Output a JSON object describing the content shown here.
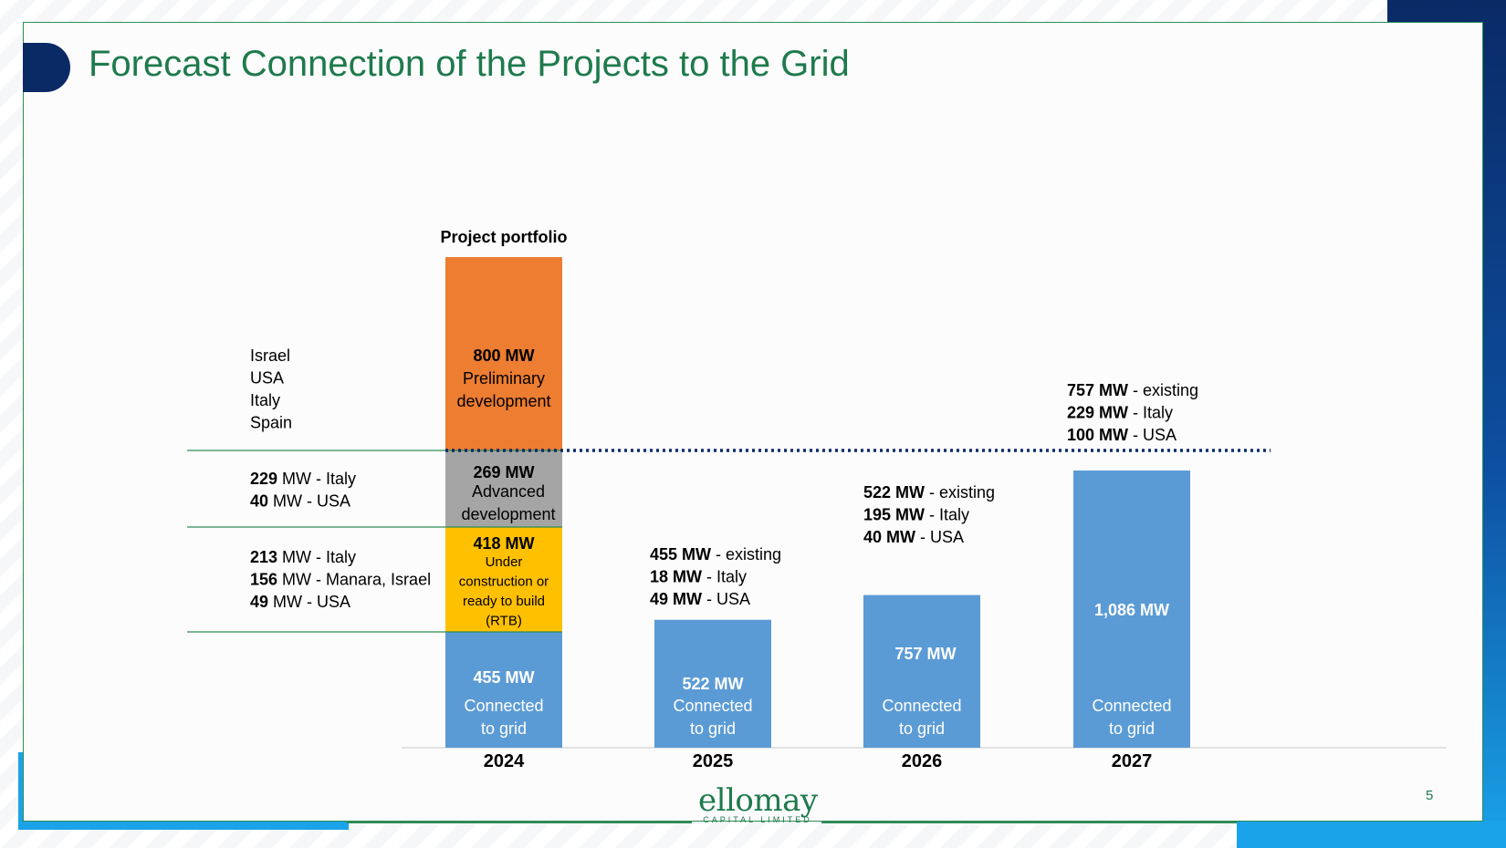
{
  "page": {
    "title": "Forecast Connection of the Projects to the Grid",
    "page_number": "5",
    "logo": {
      "name": "ellomay",
      "subtitle": "CAPITAL LIMITED"
    }
  },
  "colors": {
    "connected": "#5b9bd5",
    "rtb": "#ffc000",
    "advanced": "#a5a5a5",
    "preliminary": "#ed7d31",
    "brand_green": "#1e7a4c",
    "navy": "#0a2a66"
  },
  "chart_data": {
    "type": "bar",
    "title": "Project portfolio",
    "categories": [
      "2024",
      "2025",
      "2026",
      "2027"
    ],
    "portfolio_2024": [
      {
        "key": "connected",
        "mw": 455,
        "value_label": "455 MW",
        "lines": [
          "Connected",
          "to grid"
        ]
      },
      {
        "key": "rtb",
        "mw": 418,
        "value_label": "418 MW",
        "lines": [
          "Under",
          "construction or",
          "ready to build",
          "(RTB)"
        ]
      },
      {
        "key": "advanced",
        "mw": 269,
        "value_label": "269 MW",
        "lines": [
          "Advanced",
          "development"
        ]
      },
      {
        "key": "preliminary",
        "mw": 800,
        "value_label": "800 MW",
        "lines": [
          "Preliminary",
          "development"
        ]
      }
    ],
    "connected_bars": [
      {
        "year": "2024",
        "mw": 455,
        "value_label": "455 MW",
        "lines": [
          "Connected",
          "to grid"
        ]
      },
      {
        "year": "2025",
        "mw": 522,
        "value_label": "522 MW",
        "lines": [
          "Connected",
          "to grid"
        ]
      },
      {
        "year": "2026",
        "mw": 757,
        "value_label": "757 MW",
        "lines": [
          "Connected",
          "to grid"
        ]
      },
      {
        "year": "2027",
        "mw": 1086,
        "value_label": "1,086 MW",
        "lines": [
          "Connected",
          "to grid"
        ]
      }
    ],
    "annotations": [
      {
        "year": "2025",
        "lines": [
          {
            "bold": "455 MW",
            "rest": " - existing"
          },
          {
            "bold": "18 MW",
            "rest": " - Italy"
          },
          {
            "bold": "49 MW",
            "rest": " - USA"
          }
        ]
      },
      {
        "year": "2026",
        "lines": [
          {
            "bold": "522 MW",
            "rest": " - existing"
          },
          {
            "bold": "195 MW",
            "rest": " - Italy"
          },
          {
            "bold": "40 MW",
            "rest": " - USA"
          }
        ]
      },
      {
        "year": "2027",
        "lines": [
          {
            "bold": "757 MW",
            "rest": " - existing"
          },
          {
            "bold": "229 MW",
            "rest": " - Italy"
          },
          {
            "bold": "100 MW",
            "rest": " - USA"
          }
        ]
      }
    ],
    "left_labels": {
      "preliminary": [
        {
          "bold": "",
          "rest": "Israel"
        },
        {
          "bold": "",
          "rest": "USA"
        },
        {
          "bold": "",
          "rest": "Italy"
        },
        {
          "bold": "",
          "rest": "Spain"
        }
      ],
      "advanced": [
        {
          "bold": "229",
          "rest": " MW - Italy"
        },
        {
          "bold": "40",
          "rest": " MW - USA"
        }
      ],
      "rtb": [
        {
          "bold": "213",
          "rest": " MW - Italy"
        },
        {
          "bold": "156",
          "rest": " MW - Manara, Israel"
        },
        {
          "bold": "49",
          "rest": " MW - USA"
        }
      ]
    },
    "reference_line": {
      "style": "dotted",
      "level": "top of advanced development"
    },
    "legend": "none",
    "grid": false
  }
}
